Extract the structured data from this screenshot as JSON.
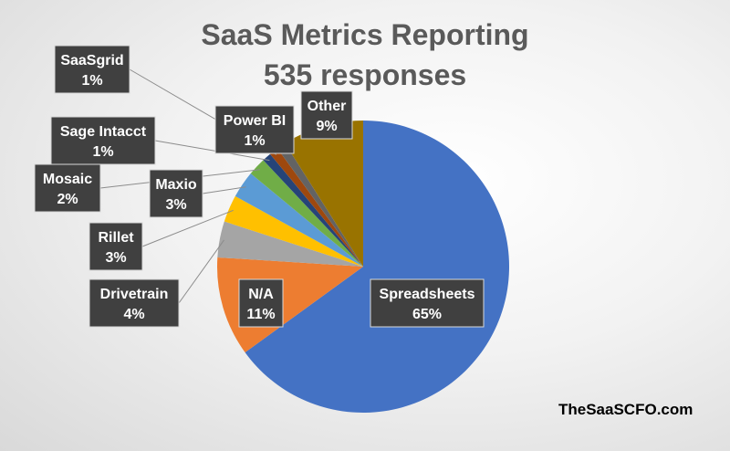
{
  "chart_data": {
    "type": "pie",
    "title": "SaaS Metrics Reporting",
    "subtitle": "535 responses",
    "slices": [
      {
        "label": "Spreadsheets",
        "value": 65,
        "pct_label": "65%",
        "color": "#4472c4"
      },
      {
        "label": "N/A",
        "value": 11,
        "pct_label": "11%",
        "color": "#ed7d31"
      },
      {
        "label": "Drivetrain",
        "value": 4,
        "pct_label": "4%",
        "color": "#a5a5a5"
      },
      {
        "label": "Rillet",
        "value": 3,
        "pct_label": "3%",
        "color": "#ffc000"
      },
      {
        "label": "Maxio",
        "value": 3,
        "pct_label": "3%",
        "color": "#5b9bd5"
      },
      {
        "label": "Mosaic",
        "value": 2,
        "pct_label": "2%",
        "color": "#70ad47"
      },
      {
        "label": "Sage Intacct",
        "value": 1,
        "pct_label": "1%",
        "color": "#264478"
      },
      {
        "label": "SaaSgrid",
        "value": 1,
        "pct_label": "1%",
        "color": "#9e480e"
      },
      {
        "label": "Power BI",
        "value": 1,
        "pct_label": "1%",
        "color": "#636363"
      },
      {
        "label": "Other",
        "value": 9,
        "pct_label": "9%",
        "color": "#997300"
      }
    ],
    "legend": "none"
  },
  "watermark": "TheSaaSCFO.com"
}
